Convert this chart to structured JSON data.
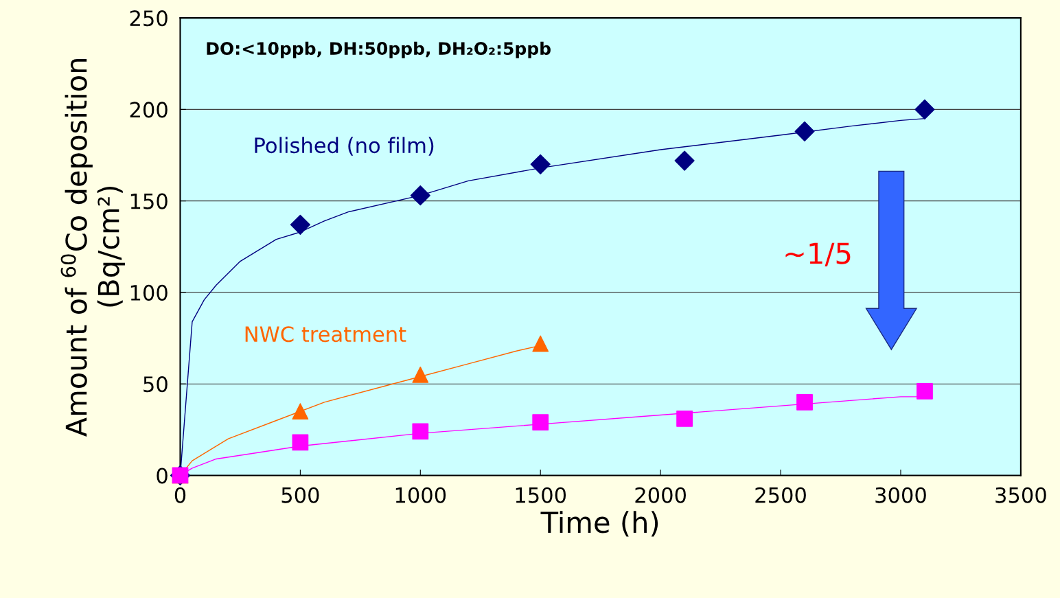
{
  "chart_data": {
    "type": "scatter",
    "xlabel": "Time (h)",
    "ylabel": "Amount of $^{60}$Co deposition\n(Bq/cm²)",
    "xlim": [
      0,
      3500
    ],
    "xticks": [
      0,
      500,
      1000,
      1500,
      2000,
      2500,
      3000,
      3500
    ],
    "ylim": [
      0,
      250
    ],
    "yticks": [
      0,
      50,
      100,
      150,
      200,
      250
    ],
    "grid": "y",
    "legend": false,
    "series": [
      {
        "name": "Polished (no film)",
        "color": "#000080",
        "marker": "diamond",
        "x": [
          0,
          500,
          1000,
          1500,
          2100,
          2600,
          3100
        ],
        "values": [
          0,
          137,
          153,
          170,
          172,
          188,
          200
        ]
      },
      {
        "type": "line",
        "color": "#000080",
        "marker": "none",
        "x": [
          0,
          50,
          100,
          150,
          250,
          400,
          500,
          600,
          700,
          1000,
          1200,
          1500,
          2000,
          2500,
          2800,
          3000,
          3100
        ],
        "values": [
          0,
          84,
          96,
          104,
          117,
          129,
          133,
          139,
          144,
          153,
          161,
          168,
          178,
          186,
          191,
          194,
          195
        ]
      },
      {
        "name": "NWC treatment",
        "color": "#ff6600",
        "marker": "triangle",
        "x": [
          0,
          500,
          1000,
          1500
        ],
        "values": [
          0,
          35,
          55,
          72
        ]
      },
      {
        "type": "line",
        "color": "#ff6600",
        "marker": "none",
        "x": [
          0,
          50,
          200,
          400,
          600,
          1000,
          1200,
          1400,
          1500
        ],
        "values": [
          0,
          8,
          20,
          30,
          40,
          54,
          61,
          68,
          71
        ]
      },
      {
        "color": "#ff00ff",
        "marker": "square",
        "x": [
          0,
          500,
          1000,
          1500,
          2100,
          2600,
          3100
        ],
        "values": [
          0,
          18,
          24,
          29,
          31,
          40,
          46
        ]
      },
      {
        "type": "line",
        "color": "#ff00ff",
        "marker": "none",
        "x": [
          0,
          50,
          150,
          300,
          500,
          1000,
          1500,
          2000,
          2500,
          3000,
          3100
        ],
        "values": [
          0,
          4,
          9,
          12,
          16,
          23,
          28,
          33,
          38,
          43,
          43
        ]
      }
    ],
    "annotations": [
      "DO:<10ppb, DH:50ppb, DH₂O₂:5ppb",
      "∼1/5"
    ]
  }
}
